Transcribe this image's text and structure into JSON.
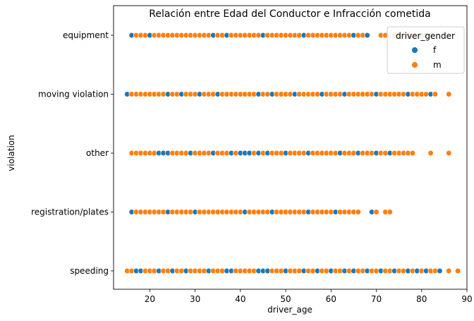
{
  "chart_data": {
    "type": "scatter",
    "title": "Relación entre Edad del Conductor e Infracción cometida",
    "xlabel": "driver_age",
    "ylabel": "violation",
    "xlim": [
      12,
      90
    ],
    "x_ticks": [
      20,
      30,
      40,
      50,
      60,
      70,
      80,
      90
    ],
    "categories": [
      "equipment",
      "moving violation",
      "other",
      "registration/plates",
      "speeding"
    ],
    "grid": false,
    "legend": {
      "title": "driver_gender",
      "position": "top-right",
      "entries": [
        "f",
        "m"
      ]
    },
    "series": [
      {
        "name": "f",
        "color": "#1f77b4",
        "points": [
          {
            "category": "equipment",
            "ages": [
              16,
              20,
              34,
              37,
              45,
              54,
              65,
              68,
              81
            ]
          },
          {
            "category": "moving violation",
            "ages": [
              15,
              24,
              27,
              31,
              35,
              44,
              47,
              52,
              58,
              63,
              70,
              77,
              82
            ]
          },
          {
            "category": "other",
            "ages": [
              22,
              23,
              24,
              29,
              34,
              38,
              40,
              41,
              42,
              44,
              46,
              50,
              55,
              62,
              66,
              70,
              73
            ]
          },
          {
            "category": "registration/plates",
            "ages": [
              16,
              24,
              30,
              41,
              47,
              55,
              61,
              69
            ]
          },
          {
            "category": "speeding",
            "ages": [
              17,
              18,
              22,
              25,
              28,
              33,
              37,
              38,
              44,
              45,
              46,
              50,
              54,
              57,
              60,
              63,
              65,
              68,
              71,
              74,
              77,
              79,
              81,
              84
            ]
          }
        ]
      },
      {
        "name": "m",
        "color": "#ff7f0e",
        "points": [
          {
            "category": "equipment",
            "ages": [
              17,
              18,
              19,
              21,
              22,
              23,
              24,
              25,
              26,
              27,
              28,
              29,
              30,
              31,
              32,
              33,
              35,
              36,
              38,
              39,
              40,
              41,
              42,
              43,
              44,
              46,
              47,
              48,
              49,
              50,
              51,
              52,
              53,
              55,
              56,
              57,
              58,
              59,
              60,
              61,
              62,
              63,
              64,
              66,
              67,
              71,
              72,
              74,
              75,
              77,
              78,
              80,
              82
            ]
          },
          {
            "category": "moving violation",
            "ages": [
              16,
              17,
              18,
              19,
              20,
              21,
              22,
              23,
              25,
              26,
              28,
              29,
              30,
              32,
              33,
              34,
              36,
              37,
              38,
              39,
              40,
              41,
              42,
              43,
              45,
              46,
              48,
              49,
              50,
              51,
              53,
              54,
              55,
              56,
              57,
              59,
              60,
              61,
              62,
              64,
              65,
              66,
              67,
              68,
              69,
              71,
              72,
              73,
              74,
              75,
              76,
              78,
              79,
              80,
              81,
              83,
              86
            ]
          },
          {
            "category": "other",
            "ages": [
              16,
              17,
              18,
              19,
              20,
              21,
              25,
              26,
              27,
              28,
              30,
              31,
              32,
              33,
              35,
              36,
              37,
              39,
              43,
              45,
              47,
              48,
              49,
              51,
              52,
              53,
              54,
              56,
              57,
              58,
              59,
              60,
              61,
              63,
              64,
              65,
              67,
              68,
              69,
              71,
              72,
              74,
              75,
              76,
              77,
              78,
              82,
              86
            ]
          },
          {
            "category": "registration/plates",
            "ages": [
              17,
              18,
              19,
              20,
              21,
              22,
              23,
              25,
              26,
              27,
              28,
              29,
              31,
              32,
              33,
              34,
              35,
              36,
              37,
              38,
              39,
              40,
              42,
              43,
              44,
              45,
              46,
              48,
              49,
              50,
              51,
              52,
              53,
              54,
              56,
              57,
              58,
              59,
              60,
              62,
              63,
              64,
              65,
              66,
              70,
              72,
              73
            ]
          },
          {
            "category": "speeding",
            "ages": [
              15,
              16,
              19,
              20,
              21,
              23,
              24,
              26,
              27,
              29,
              30,
              31,
              32,
              34,
              35,
              36,
              39,
              40,
              41,
              42,
              43,
              47,
              48,
              49,
              51,
              52,
              53,
              55,
              56,
              58,
              59,
              61,
              62,
              64,
              66,
              67,
              69,
              70,
              72,
              73,
              75,
              76,
              78,
              80,
              82,
              83,
              86,
              88
            ]
          }
        ]
      }
    ]
  }
}
